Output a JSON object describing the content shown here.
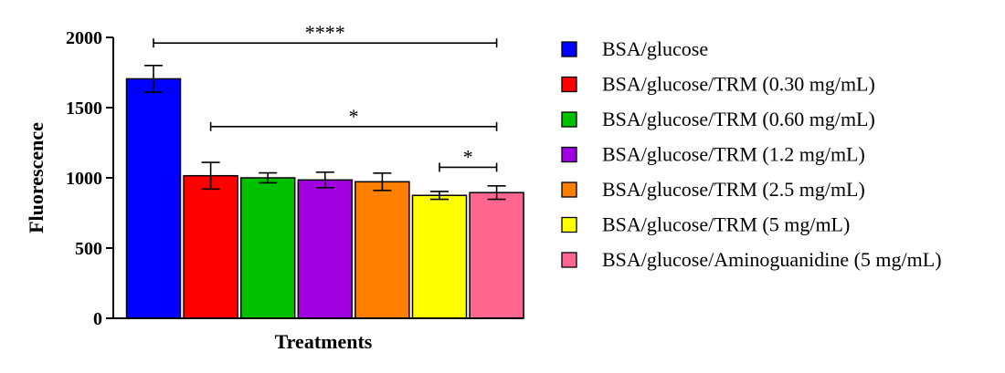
{
  "chart_data": {
    "type": "bar",
    "title": "",
    "xlabel": "Treatments",
    "ylabel": "Fluorescence",
    "ylim": [
      0,
      2000
    ],
    "yticks": [
      0,
      500,
      1000,
      1500,
      2000
    ],
    "ytick_labels": [
      "0",
      "500",
      "1000",
      "1500",
      "2000"
    ],
    "legend_position": "right",
    "categories": [
      "BSA/glucose",
      "BSA/glucose/TRM (0.30 mg/mL)",
      "BSA/glucose/TRM (0.60 mg/mL)",
      "BSA/glucose/TRM (1.2 mg/mL)",
      "BSA/glucose/TRM (2.5 mg/mL)",
      "BSA/glucose/TRM (5 mg/mL)",
      "BSA/glucose/Aminoguanidine (5 mg/mL)"
    ],
    "values": [
      1705,
      1015,
      1000,
      985,
      972,
      875,
      895
    ],
    "errors": [
      95,
      95,
      35,
      55,
      62,
      28,
      48
    ],
    "colors": [
      "#0000FF",
      "#FF0000",
      "#00C000",
      "#A000E0",
      "#FF8000",
      "#FFFF00",
      "#FF6690"
    ],
    "significance": [
      {
        "from_index": 0,
        "to_index": 6,
        "level": 1960,
        "label": "****"
      },
      {
        "from_index": 1,
        "to_index": 6,
        "level": 1365,
        "label": "*"
      },
      {
        "from_index": 5,
        "to_index": 6,
        "level": 1075,
        "label": "*"
      }
    ]
  }
}
